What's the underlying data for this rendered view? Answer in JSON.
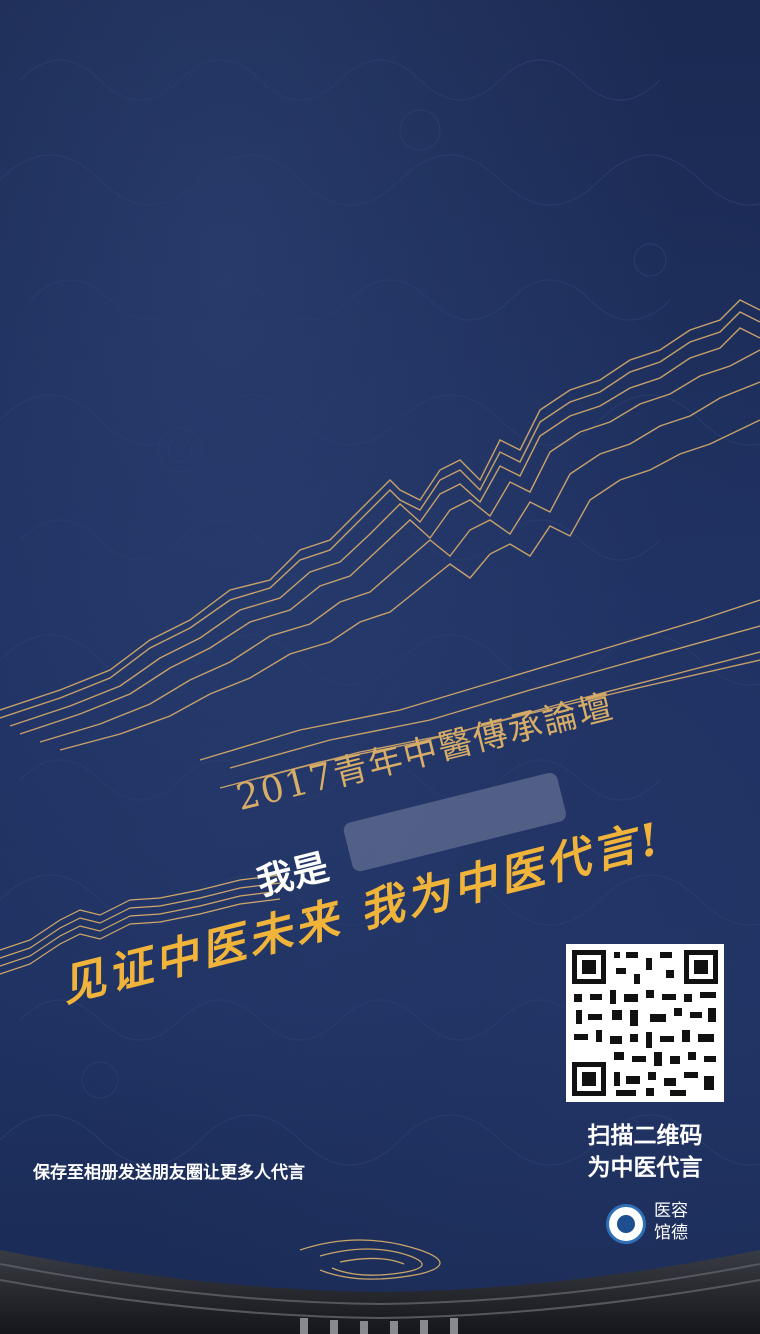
{
  "poster": {
    "title_year": "2017",
    "title_text": "青年中醫傳承論壇",
    "iam_label": "我是",
    "slogan": "见证中医未来  我为中医代言!",
    "qr_caption_line1": "扫描二维码",
    "qr_caption_line2": "为中医代言",
    "share_text": "保存至相册发送朋友圈让更多人代言",
    "logo_text_line1": "医容",
    "logo_text_line2": "馆德"
  },
  "colors": {
    "background": "#1e3060",
    "gold_lines": "#d1a76a",
    "slogan": "#f1b43a",
    "title": "#d8ad67",
    "text": "#ffffff"
  },
  "icons": {
    "qr": "qr-code-icon",
    "logo": "hospital-logo-icon"
  }
}
